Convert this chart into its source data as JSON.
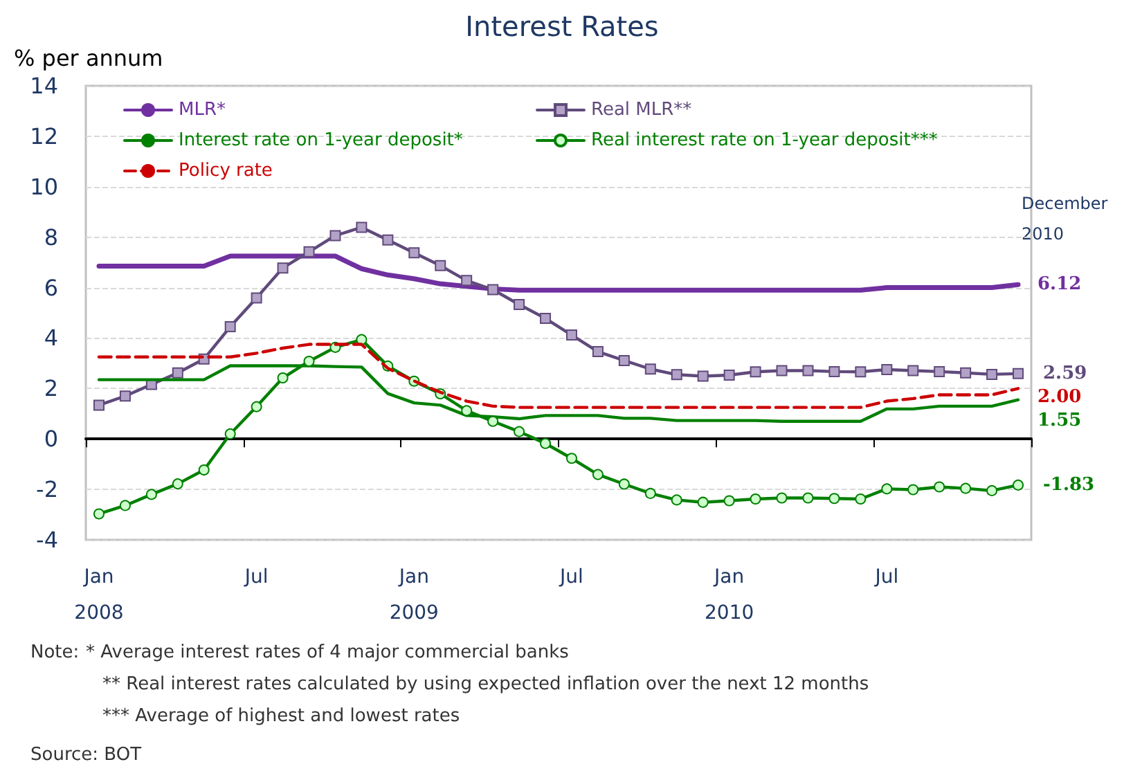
{
  "chart_data": {
    "type": "line",
    "title": "Interest Rates",
    "ylabel": "% per annum",
    "categories": [
      "Jan\n2008",
      null,
      null,
      null,
      null,
      null,
      "Jul",
      null,
      null,
      null,
      null,
      null,
      "Jan\n2009",
      null,
      null,
      null,
      null,
      null,
      "Jul",
      null,
      null,
      null,
      null,
      null,
      "Jan\n2010",
      null,
      null,
      null,
      null,
      null,
      "Jul",
      null,
      null,
      null,
      null,
      null
    ],
    "series": [
      {
        "name": "MLR*",
        "color": "#7030a0",
        "marker": "none",
        "line_style": "solid",
        "values": [
          6.85,
          6.85,
          6.85,
          6.85,
          6.85,
          7.25,
          7.25,
          7.25,
          7.25,
          7.25,
          6.75,
          6.5,
          6.35,
          6.15,
          6.05,
          5.95,
          5.9,
          5.9,
          5.9,
          5.9,
          5.9,
          5.9,
          5.9,
          5.9,
          5.9,
          5.9,
          5.9,
          5.9,
          5.9,
          5.9,
          6.0,
          6.0,
          6.0,
          6.0,
          6.0,
          6.12
        ],
        "value_labels": [
          null,
          null,
          null,
          null,
          null,
          null,
          null,
          null,
          null,
          null,
          null,
          null,
          null,
          null,
          null,
          null,
          null,
          null,
          null,
          null,
          null,
          null,
          null,
          null,
          null,
          null,
          null,
          null,
          null,
          null,
          null,
          null,
          null,
          null,
          null,
          "6.12"
        ]
      },
      {
        "name": "Real MLR**",
        "color": "#604a7b",
        "marker": "square",
        "line_style": "solid",
        "values": [
          1.34,
          1.7,
          2.16,
          2.62,
          3.17,
          4.45,
          5.59,
          6.78,
          7.42,
          8.06,
          8.39,
          7.89,
          7.38,
          6.87,
          6.28,
          5.92,
          5.33,
          4.78,
          4.12,
          3.46,
          3.11,
          2.77,
          2.55,
          2.49,
          2.53,
          2.66,
          2.71,
          2.71,
          2.67,
          2.66,
          2.75,
          2.71,
          2.67,
          2.62,
          2.56,
          2.59
        ],
        "value_labels": [
          null,
          null,
          null,
          null,
          null,
          null,
          null,
          null,
          null,
          null,
          null,
          null,
          null,
          null,
          null,
          null,
          null,
          null,
          null,
          null,
          null,
          null,
          null,
          null,
          null,
          null,
          null,
          null,
          null,
          null,
          null,
          null,
          null,
          null,
          null,
          "2.59"
        ]
      },
      {
        "name": "Interest rate on 1-year deposit*",
        "color": "#008000",
        "marker": "none",
        "line_style": "solid",
        "values": [
          2.35,
          2.35,
          2.35,
          2.35,
          2.35,
          2.9,
          2.9,
          2.9,
          2.9,
          2.87,
          2.85,
          1.8,
          1.43,
          1.34,
          0.93,
          0.88,
          0.8,
          0.93,
          0.93,
          0.93,
          0.82,
          0.82,
          0.73,
          0.73,
          0.73,
          0.73,
          0.7,
          0.7,
          0.7,
          0.7,
          1.19,
          1.19,
          1.3,
          1.3,
          1.3,
          1.55
        ],
        "value_labels": [
          null,
          null,
          null,
          null,
          null,
          null,
          null,
          null,
          null,
          null,
          null,
          null,
          null,
          null,
          null,
          null,
          null,
          null,
          null,
          null,
          null,
          null,
          null,
          null,
          null,
          null,
          null,
          null,
          null,
          null,
          null,
          null,
          null,
          null,
          null,
          "1.55"
        ]
      },
      {
        "name": "Real interest rate on 1-year deposit***",
        "color": "#008000",
        "marker": "circle",
        "line_style": "solid",
        "values": [
          -2.97,
          -2.64,
          -2.2,
          -1.78,
          -1.23,
          0.2,
          1.28,
          2.42,
          3.08,
          3.63,
          3.94,
          2.89,
          2.29,
          1.79,
          1.12,
          0.7,
          0.29,
          -0.18,
          -0.77,
          -1.41,
          -1.79,
          -2.16,
          -2.42,
          -2.51,
          -2.45,
          -2.38,
          -2.34,
          -2.34,
          -2.36,
          -2.38,
          -1.98,
          -2.01,
          -1.9,
          -1.96,
          -2.05,
          -1.83
        ],
        "value_labels": [
          null,
          null,
          null,
          null,
          null,
          null,
          null,
          null,
          null,
          null,
          null,
          null,
          null,
          null,
          null,
          null,
          null,
          null,
          null,
          null,
          null,
          null,
          null,
          null,
          null,
          null,
          null,
          null,
          null,
          null,
          null,
          null,
          null,
          null,
          null,
          "-1.83"
        ]
      },
      {
        "name": "Policy rate",
        "color": "#cc0000",
        "marker": "none",
        "line_style": "dashed",
        "values": [
          3.25,
          3.25,
          3.25,
          3.25,
          3.25,
          3.25,
          3.4,
          3.6,
          3.75,
          3.75,
          3.75,
          2.8,
          2.3,
          1.85,
          1.5,
          1.3,
          1.25,
          1.25,
          1.25,
          1.25,
          1.25,
          1.25,
          1.25,
          1.25,
          1.25,
          1.25,
          1.25,
          1.25,
          1.25,
          1.25,
          1.5,
          1.6,
          1.75,
          1.75,
          1.75,
          2.0
        ],
        "value_labels": [
          null,
          null,
          null,
          null,
          null,
          null,
          null,
          null,
          null,
          null,
          null,
          null,
          null,
          null,
          null,
          null,
          null,
          null,
          null,
          null,
          null,
          null,
          null,
          null,
          null,
          null,
          null,
          null,
          null,
          null,
          null,
          null,
          null,
          null,
          null,
          "2.00"
        ]
      }
    ],
    "ylim": [
      -4,
      14
    ],
    "yticks": [
      -4,
      -2,
      0,
      2,
      4,
      6,
      8,
      10,
      12,
      14
    ],
    "grid": "y",
    "legend": "top",
    "annotations": [
      "December 2010",
      "Note:",
      "* Average interest rates of 4 major commercial banks",
      "** Real interest rates calculated by using expected inflation over the next 12 months",
      "*** Average of highest and lowest rates",
      "Source: BOT"
    ]
  }
}
